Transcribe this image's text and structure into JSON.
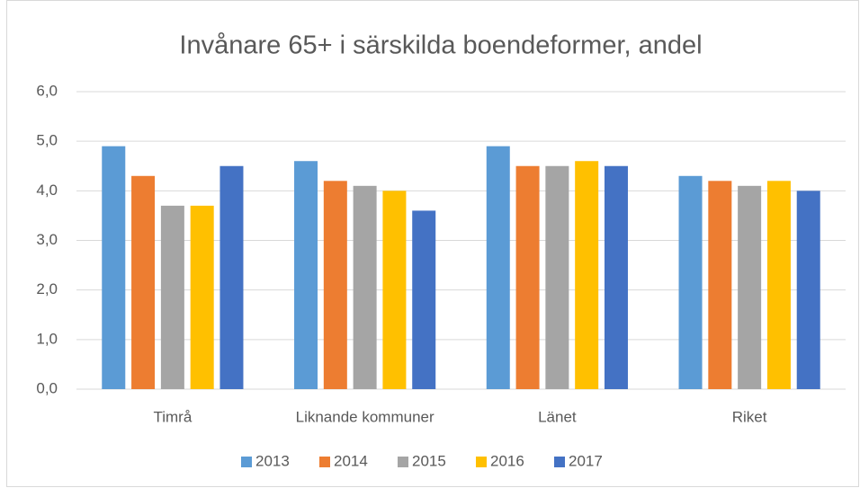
{
  "chart_data": {
    "type": "bar",
    "title": "Invånare 65+ i särskilda boendeformer,  andel",
    "categories": [
      "Timrå",
      "Liknande kommuner",
      "Länet",
      "Riket"
    ],
    "series": [
      {
        "name": "2013",
        "color": "#5b9bd5",
        "values": [
          4.9,
          4.6,
          4.9,
          4.3
        ]
      },
      {
        "name": "2014",
        "color": "#ed7d31",
        "values": [
          4.3,
          4.2,
          4.5,
          4.2
        ]
      },
      {
        "name": "2015",
        "color": "#a5a5a5",
        "values": [
          3.7,
          4.1,
          4.5,
          4.1
        ]
      },
      {
        "name": "2016",
        "color": "#ffc000",
        "values": [
          3.7,
          4.0,
          4.6,
          4.2
        ]
      },
      {
        "name": "2017",
        "color": "#4472c4",
        "values": [
          4.5,
          3.6,
          4.5,
          4.0
        ]
      }
    ],
    "ylim": [
      0,
      6
    ],
    "yticks": [
      {
        "value": 0,
        "label": "0,0"
      },
      {
        "value": 1,
        "label": "1,0"
      },
      {
        "value": 2,
        "label": "2,0"
      },
      {
        "value": 3,
        "label": "3,0"
      },
      {
        "value": 4,
        "label": "4,0"
      },
      {
        "value": 5,
        "label": "5,0"
      },
      {
        "value": 6,
        "label": "6,0"
      }
    ],
    "grid": true,
    "legend": "bottom"
  }
}
